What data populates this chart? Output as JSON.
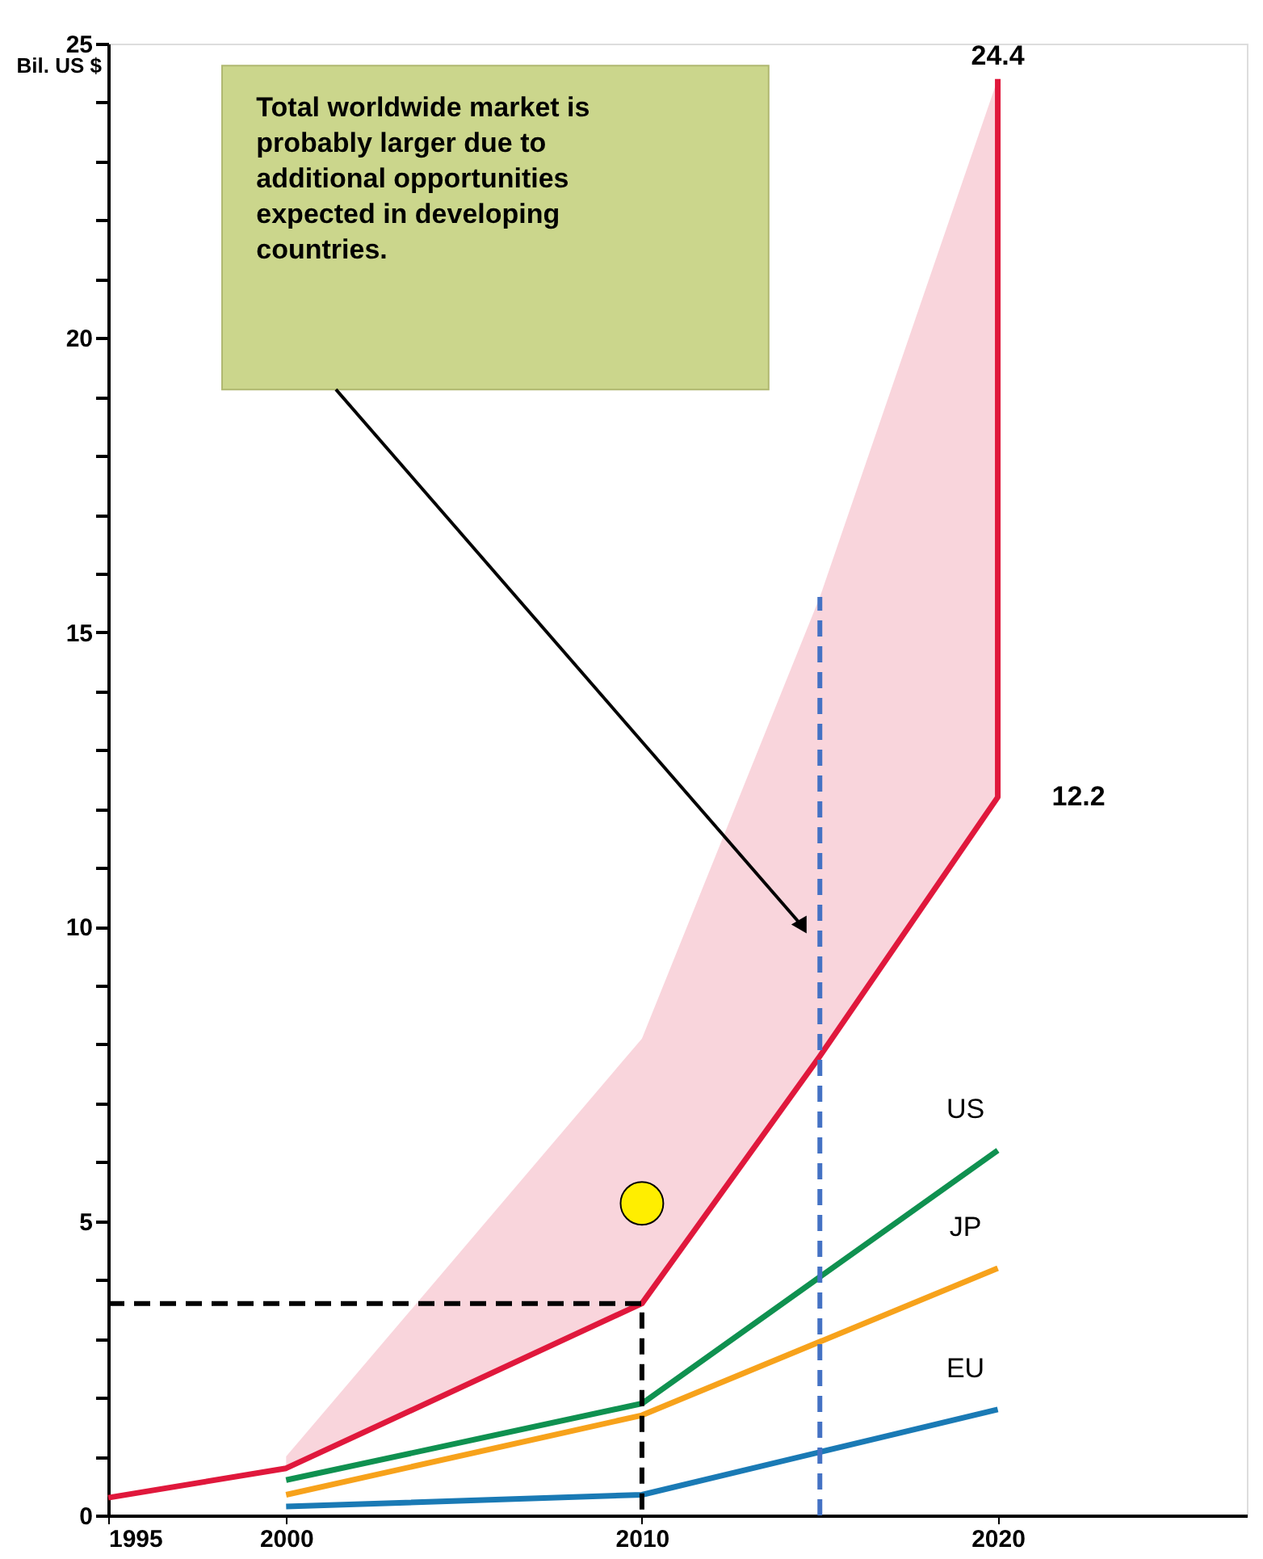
{
  "chart_data": {
    "type": "line",
    "ylabel": "Bil. US $",
    "xlim": [
      1995,
      2027
    ],
    "xticks": [
      1995,
      2000,
      2010,
      2020
    ],
    "ylim": [
      0,
      25
    ],
    "yticks": [
      0,
      {
        "value": 1,
        "label": null
      },
      {
        "value": 2,
        "label": null
      },
      {
        "value": 3,
        "label": null
      },
      {
        "value": 4,
        "label": null
      },
      5,
      {
        "value": 6,
        "label": null
      },
      {
        "value": 7,
        "label": null
      },
      {
        "value": 8,
        "label": null
      },
      {
        "value": 9,
        "label": null
      },
      10,
      {
        "value": 11,
        "label": null
      },
      {
        "value": 12,
        "label": null
      },
      {
        "value": 13,
        "label": null
      },
      {
        "value": 14,
        "label": null
      },
      15,
      {
        "value": 16,
        "label": null
      },
      {
        "value": 17,
        "label": null
      },
      {
        "value": 18,
        "label": null
      },
      {
        "value": 19,
        "label": null
      },
      20,
      {
        "value": 21,
        "label": null
      },
      {
        "value": 22,
        "label": null
      },
      {
        "value": 23,
        "label": null
      },
      {
        "value": 24,
        "label": null
      },
      25
    ],
    "grid": false,
    "legend": false,
    "marker": "none",
    "line_style": "solid",
    "series": [
      {
        "color": "#e0183c",
        "x": [
          1995,
          2000,
          2010,
          2015,
          2020,
          2020
        ],
        "values": [
          0.3,
          0.8,
          3.6,
          7.8,
          12.2,
          24.4
        ],
        "lower": [
          null,
          0.8,
          3.6,
          7.8,
          12.2,
          24.4
        ],
        "upper": [
          null,
          1.0,
          8.1,
          15.6,
          24.4,
          24.4
        ]
      },
      {
        "name": "US",
        "color": "#0f9150",
        "x": [
          2000,
          2010,
          2020
        ],
        "values": [
          0.6,
          1.9,
          6.2
        ]
      },
      {
        "name": "JP",
        "color": "#f7a21b",
        "x": [
          2000,
          2010,
          2020
        ],
        "values": [
          0.35,
          1.7,
          4.2
        ]
      },
      {
        "name": "EU",
        "color": "#1a7ab5",
        "x": [
          2000,
          2010,
          2020
        ],
        "values": [
          0.15,
          0.35,
          1.8
        ]
      },
      {
        "color": "#000000",
        "line_style": "dashed",
        "x": [
          1995,
          2010,
          2010
        ],
        "values": [
          3.6,
          3.6,
          0
        ]
      },
      {
        "color": "#4472c4",
        "line_style": "dashed",
        "x": [
          2015,
          2015
        ],
        "values": [
          0,
          15.6
        ]
      },
      {
        "type": "scatter",
        "marker": "circle",
        "color": "#ffee00",
        "x": [
          2010
        ],
        "values": [
          5.3
        ]
      }
    ],
    "annotations": [
      {
        "text": "24.4",
        "x": 2020,
        "y": 24.4
      },
      {
        "text": "12.2",
        "x": 2020,
        "y": 12.2
      },
      "Total worldwide market is\nprobably larger due to\nadditional opportunities\nexpected in developing\ncountries."
    ]
  }
}
